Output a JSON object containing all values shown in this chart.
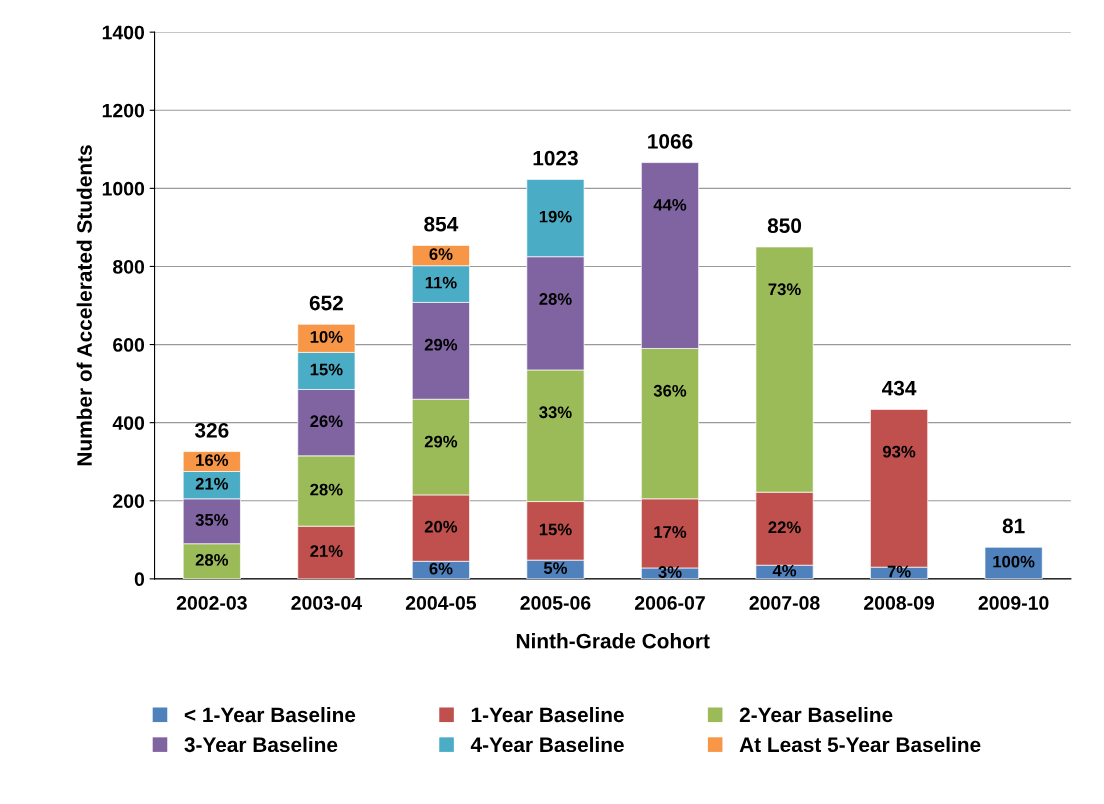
{
  "chart_data": {
    "type": "bar",
    "stacked": true,
    "xlabel": "Ninth-Grade Cohort",
    "ylabel": "Number of Accelerated Students",
    "categories": [
      "2002-03",
      "2003-04",
      "2004-05",
      "2005-06",
      "2006-07",
      "2007-08",
      "2008-09",
      "2009-10"
    ],
    "series": [
      {
        "name": "< 1-Year Baseline",
        "color": "#4f81bd",
        "values": [
          null,
          null,
          45,
          48,
          28,
          35,
          30,
          81
        ]
      },
      {
        "name": "1-Year Baseline",
        "color": "#c0504d",
        "values": [
          null,
          135,
          170,
          150,
          177,
          187,
          404,
          null
        ]
      },
      {
        "name": "2-Year Baseline",
        "color": "#9bbb59",
        "values": [
          90,
          180,
          245,
          337,
          385,
          628,
          null,
          null
        ]
      },
      {
        "name": "3-Year Baseline",
        "color": "#8064a2",
        "values": [
          115,
          170,
          248,
          290,
          476,
          null,
          null,
          null
        ]
      },
      {
        "name": "4-Year Baseline",
        "color": "#4bacc6",
        "values": [
          70,
          95,
          94,
          198,
          null,
          null,
          null,
          null
        ]
      },
      {
        "name": "At Least 5-Year Baseline",
        "color": "#f79646",
        "values": [
          51,
          72,
          52,
          null,
          null,
          null,
          null,
          null
        ]
      }
    ],
    "annotations": [
      {
        "text": "28%",
        "x": "2002-03",
        "y": 90
      },
      {
        "text": "35%",
        "x": "2002-03",
        "y": 205
      },
      {
        "text": "21%",
        "x": "2002-03",
        "y": 275
      },
      {
        "text": "16%",
        "x": "2002-03",
        "y": 326
      },
      {
        "text": "21%",
        "x": "2003-04",
        "y": 135
      },
      {
        "text": "28%",
        "x": "2003-04",
        "y": 315
      },
      {
        "text": "26%",
        "x": "2003-04",
        "y": 485
      },
      {
        "text": "15%",
        "x": "2003-04",
        "y": 580
      },
      {
        "text": "10%",
        "x": "2003-04",
        "y": 652
      },
      {
        "text": "6%",
        "x": "2004-05",
        "y": 45
      },
      {
        "text": "20%",
        "x": "2004-05",
        "y": 215
      },
      {
        "text": "29%",
        "x": "2004-05",
        "y": 460
      },
      {
        "text": "29%",
        "x": "2004-05",
        "y": 708
      },
      {
        "text": "11%",
        "x": "2004-05",
        "y": 802
      },
      {
        "text": "6%",
        "x": "2004-05",
        "y": 854
      },
      {
        "text": "5%",
        "x": "2005-06",
        "y": 48
      },
      {
        "text": "15%",
        "x": "2005-06",
        "y": 198
      },
      {
        "text": "33%",
        "x": "2005-06",
        "y": 535
      },
      {
        "text": "28%",
        "x": "2005-06",
        "y": 825
      },
      {
        "text": "19%",
        "x": "2005-06",
        "y": 1023
      },
      {
        "text": "3%",
        "x": "2006-07",
        "y": 28
      },
      {
        "text": "17%",
        "x": "2006-07",
        "y": 205
      },
      {
        "text": "36%",
        "x": "2006-07",
        "y": 590
      },
      {
        "text": "44%",
        "x": "2006-07",
        "y": 1066
      },
      {
        "text": "4%",
        "x": "2007-08",
        "y": 35
      },
      {
        "text": "22%",
        "x": "2007-08",
        "y": 222
      },
      {
        "text": "73%",
        "x": "2007-08",
        "y": 850
      },
      {
        "text": "7%",
        "x": "2008-09",
        "y": 30
      },
      {
        "text": "93%",
        "x": "2008-09",
        "y": 434
      },
      {
        "text": "100%",
        "x": "2009-10",
        "y": 81
      }
    ],
    "totals": [
      "326",
      "652",
      "854",
      "1023",
      "1066",
      "850",
      "434",
      "81"
    ],
    "ylim": [
      0,
      1400
    ],
    "yticks": [
      0,
      200,
      400,
      600,
      800,
      1000,
      1200,
      1400
    ],
    "grid": "y",
    "legend": "bottom"
  }
}
